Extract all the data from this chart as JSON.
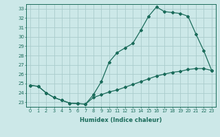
{
  "xlabel": "Humidex (Indice chaleur)",
  "bg_color": "#cce8e8",
  "line_color": "#1a6b5a",
  "grid_color": "#aacccc",
  "xlim": [
    -0.5,
    23.5
  ],
  "ylim": [
    22.5,
    33.5
  ],
  "yticks": [
    23,
    24,
    25,
    26,
    27,
    28,
    29,
    30,
    31,
    32,
    33
  ],
  "xticks": [
    0,
    1,
    2,
    3,
    4,
    5,
    6,
    7,
    8,
    9,
    10,
    11,
    12,
    13,
    14,
    15,
    16,
    17,
    18,
    19,
    20,
    21,
    22,
    23
  ],
  "series1_x": [
    0,
    1,
    2,
    3,
    4,
    5,
    6,
    7,
    8,
    9,
    10,
    11,
    12,
    13,
    14,
    15,
    16,
    17,
    18,
    19,
    20,
    21,
    22,
    23
  ],
  "series1_y": [
    24.8,
    24.7,
    24.0,
    23.5,
    23.2,
    22.9,
    22.85,
    22.8,
    23.8,
    25.2,
    27.3,
    28.3,
    28.8,
    29.3,
    30.7,
    32.2,
    33.2,
    32.7,
    32.6,
    32.5,
    32.2,
    30.3,
    28.5,
    26.4
  ],
  "series2_x": [
    0,
    1,
    2,
    3,
    4,
    5,
    6,
    7,
    8,
    9,
    10,
    11,
    12,
    13,
    14,
    15,
    16,
    17,
    18,
    19,
    20,
    21,
    22,
    23
  ],
  "series2_y": [
    24.8,
    24.7,
    24.0,
    23.5,
    23.2,
    22.9,
    22.85,
    22.8,
    23.5,
    23.8,
    24.1,
    24.3,
    24.6,
    24.9,
    25.2,
    25.5,
    25.8,
    26.0,
    26.2,
    26.3,
    26.5,
    26.6,
    26.6,
    26.4
  ],
  "markersize": 2.0,
  "linewidth": 0.9
}
